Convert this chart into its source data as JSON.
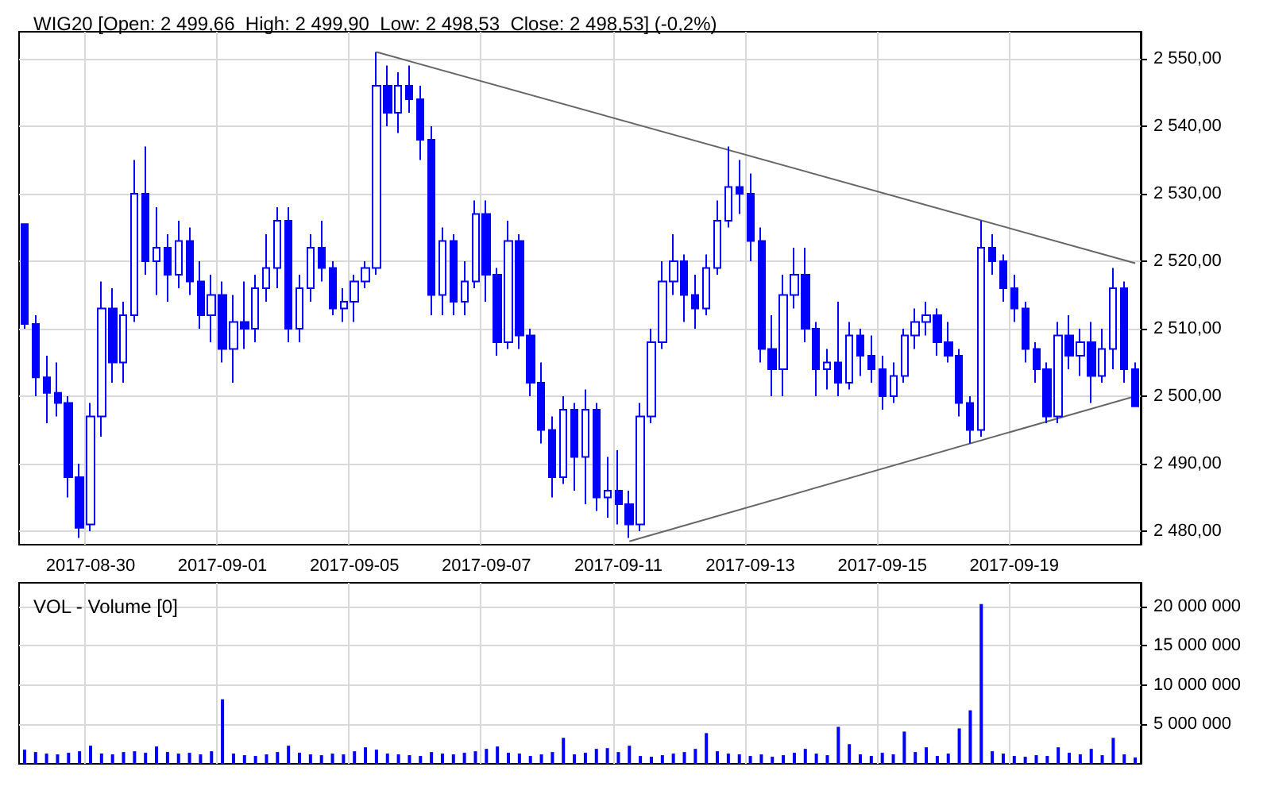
{
  "chart_data": [
    {
      "type": "candlestick",
      "title": "WIG20 [Open: 2 499,66  High: 2 499,90  Low: 2 498,53  Close: 2 498,53] (-0,2%)",
      "categories": [
        null,
        null,
        null,
        null,
        null,
        null,
        "2017-08-30",
        null,
        null,
        null,
        null,
        null,
        null,
        null,
        null,
        null,
        null,
        null,
        "2017-09-01",
        null,
        null,
        null,
        null,
        null,
        null,
        null,
        null,
        null,
        null,
        null,
        "2017-09-05",
        null,
        null,
        null,
        null,
        null,
        null,
        null,
        null,
        null,
        null,
        null,
        "2017-09-07",
        null,
        null,
        null,
        null,
        null,
        null,
        null,
        null,
        null,
        null,
        null,
        "2017-09-11",
        null,
        null,
        null,
        null,
        null,
        null,
        null,
        null,
        null,
        null,
        null,
        "2017-09-13",
        null,
        null,
        null,
        null,
        null,
        null,
        null,
        null,
        null,
        null,
        null,
        "2017-09-15",
        null,
        null,
        null,
        null,
        null,
        null,
        null,
        null,
        null,
        null,
        null,
        "2017-09-19",
        null,
        null,
        null,
        null,
        null,
        null,
        null,
        null,
        null,
        null,
        null
      ],
      "ohlc": [
        [
          2525.5,
          2525.5,
          2510,
          2510.7
        ],
        [
          2510.7,
          2512,
          2500,
          2502.8
        ],
        [
          2502.8,
          2506,
          2496,
          2500.5
        ],
        [
          2500.5,
          2505,
          2497,
          2499
        ],
        [
          2499,
          2500,
          2485,
          2488
        ],
        [
          2488,
          2490,
          2479,
          2480.5
        ],
        [
          2481,
          2499,
          2480,
          2497
        ],
        [
          2497,
          2517,
          2494,
          2513
        ],
        [
          2513,
          2516,
          2502,
          2505
        ],
        [
          2505,
          2514,
          2502,
          2512
        ],
        [
          2512,
          2535,
          2511,
          2530
        ],
        [
          2530,
          2537,
          2518,
          2520
        ],
        [
          2520,
          2528,
          2515,
          2522
        ],
        [
          2522,
          2524,
          2514,
          2518
        ],
        [
          2518,
          2526,
          2516,
          2523
        ],
        [
          2523,
          2525,
          2515,
          2517
        ],
        [
          2517,
          2520,
          2510,
          2512
        ],
        [
          2512,
          2518,
          2508,
          2515
        ],
        [
          2515,
          2517,
          2505,
          2507
        ],
        [
          2507,
          2515,
          2502,
          2511
        ],
        [
          2511,
          2517,
          2507,
          2510
        ],
        [
          2510,
          2518,
          2508,
          2516
        ],
        [
          2516,
          2524,
          2514,
          2519
        ],
        [
          2519,
          2528,
          2516,
          2526
        ],
        [
          2526,
          2528,
          2508,
          2510
        ],
        [
          2510,
          2518,
          2508,
          2516
        ],
        [
          2516,
          2524,
          2514,
          2522
        ],
        [
          2522,
          2526,
          2517,
          2519
        ],
        [
          2519,
          2520,
          2512,
          2513
        ],
        [
          2513,
          2516,
          2511,
          2514
        ],
        [
          2514,
          2518,
          2511,
          2517
        ],
        [
          2517,
          2520,
          2516,
          2519
        ],
        [
          2519,
          2551,
          2518,
          2546
        ],
        [
          2546,
          2549,
          2540,
          2542
        ],
        [
          2542,
          2548,
          2539,
          2546
        ],
        [
          2546,
          2549,
          2542,
          2544
        ],
        [
          2544,
          2546,
          2535,
          2538
        ],
        [
          2538,
          2540,
          2512,
          2515
        ],
        [
          2515,
          2525,
          2512,
          2523
        ],
        [
          2523,
          2524,
          2512,
          2514
        ],
        [
          2514,
          2520,
          2512,
          2517
        ],
        [
          2517,
          2529,
          2516,
          2527
        ],
        [
          2527,
          2529,
          2514,
          2518
        ],
        [
          2518,
          2519,
          2506,
          2508
        ],
        [
          2508,
          2526,
          2507,
          2523
        ],
        [
          2523,
          2524,
          2507,
          2509
        ],
        [
          2509,
          2510,
          2500,
          2502
        ],
        [
          2502,
          2505,
          2493,
          2495
        ],
        [
          2495,
          2497,
          2485,
          2488
        ],
        [
          2488,
          2500,
          2487,
          2498
        ],
        [
          2498,
          2499,
          2486,
          2491
        ],
        [
          2491,
          2501,
          2484,
          2498
        ],
        [
          2498,
          2499,
          2483,
          2485
        ],
        [
          2485,
          2491,
          2482,
          2486
        ],
        [
          2486,
          2492,
          2481,
          2484
        ],
        [
          2484,
          2486,
          2479,
          2481
        ],
        [
          2481,
          2499,
          2480,
          2497
        ],
        [
          2497,
          2510,
          2496,
          2508
        ],
        [
          2508,
          2520,
          2507,
          2517
        ],
        [
          2517,
          2524,
          2515,
          2520
        ],
        [
          2520,
          2521,
          2511,
          2515
        ],
        [
          2515,
          2518,
          2510,
          2513
        ],
        [
          2513,
          2521,
          2512,
          2519
        ],
        [
          2519,
          2529,
          2518,
          2526
        ],
        [
          2526,
          2537,
          2525,
          2531
        ],
        [
          2531,
          2535,
          2527,
          2530
        ],
        [
          2530,
          2533,
          2520,
          2523
        ],
        [
          2523,
          2525,
          2505,
          2507
        ],
        [
          2507,
          2512,
          2500,
          2504
        ],
        [
          2504,
          2518,
          2500,
          2515
        ],
        [
          2515,
          2522,
          2513,
          2518
        ],
        [
          2518,
          2522,
          2508,
          2510
        ],
        [
          2510,
          2511,
          2500,
          2504
        ],
        [
          2504,
          2507,
          2501,
          2505
        ],
        [
          2505,
          2514,
          2500,
          2502
        ],
        [
          2502,
          2511,
          2501,
          2509
        ],
        [
          2509,
          2510,
          2503,
          2506
        ],
        [
          2506,
          2509,
          2502,
          2504
        ],
        [
          2504,
          2506,
          2498,
          2500
        ],
        [
          2500,
          2505,
          2499,
          2503
        ],
        [
          2503,
          2510,
          2502,
          2509
        ],
        [
          2509,
          2513,
          2507,
          2511
        ],
        [
          2511,
          2514,
          2509,
          2512
        ],
        [
          2512,
          2513,
          2506,
          2508
        ],
        [
          2508,
          2511,
          2505,
          2506
        ],
        [
          2506,
          2507,
          2497,
          2499
        ],
        [
          2499,
          2500,
          2493,
          2495
        ],
        [
          2495,
          2526,
          2494,
          2522
        ],
        [
          2522,
          2524,
          2518,
          2520
        ],
        [
          2520,
          2521,
          2514,
          2516
        ],
        [
          2516,
          2518,
          2511,
          2513
        ],
        [
          2513,
          2514,
          2505,
          2507
        ],
        [
          2507,
          2508,
          2502,
          2504
        ],
        [
          2504,
          2505,
          2496,
          2497
        ],
        [
          2497,
          2511,
          2496,
          2509
        ],
        [
          2509,
          2512,
          2504,
          2506
        ],
        [
          2506,
          2510,
          2503,
          2508
        ],
        [
          2508,
          2511,
          2499,
          2503
        ],
        [
          2503,
          2510,
          2502,
          2507
        ],
        [
          2507,
          2519,
          2504,
          2516
        ],
        [
          2516,
          2517,
          2502,
          2504
        ],
        [
          2504,
          2505,
          2498.5,
          2498.5
        ]
      ],
      "color": "#0000ff",
      "series": [
        {
          "type": "line",
          "color": "#666666",
          "values": [
            null,
            null,
            null,
            null,
            null,
            null,
            null,
            null,
            null,
            null,
            null,
            null,
            null,
            null,
            null,
            null,
            null,
            null,
            null,
            null,
            null,
            null,
            null,
            null,
            null,
            null,
            null,
            null,
            null,
            null,
            null,
            null,
            2551,
            null,
            null,
            null,
            null,
            null,
            null,
            null,
            null,
            null,
            null,
            null,
            null,
            null,
            null,
            null,
            null,
            null,
            null,
            null,
            null,
            null,
            null,
            null,
            null,
            null,
            null,
            null,
            null,
            null,
            null,
            null,
            null,
            null,
            null,
            null,
            null,
            null,
            null,
            null,
            null,
            null,
            null,
            null,
            null,
            null,
            null,
            null,
            null,
            null,
            null,
            null,
            null,
            null,
            null,
            null,
            null,
            null,
            null,
            null,
            null,
            null,
            null,
            null,
            null,
            null,
            null,
            null,
            null,
            2519.7
          ]
        },
        {
          "type": "line",
          "color": "#666666",
          "values": [
            null,
            null,
            null,
            null,
            null,
            null,
            null,
            null,
            null,
            null,
            null,
            null,
            null,
            null,
            null,
            null,
            null,
            null,
            null,
            null,
            null,
            null,
            null,
            null,
            null,
            null,
            null,
            null,
            null,
            null,
            null,
            null,
            null,
            null,
            null,
            null,
            null,
            null,
            null,
            null,
            null,
            null,
            null,
            null,
            null,
            null,
            null,
            null,
            null,
            null,
            null,
            null,
            null,
            null,
            null,
            2478.5,
            null,
            null,
            null,
            null,
            null,
            null,
            null,
            null,
            null,
            null,
            null,
            null,
            null,
            null,
            null,
            null,
            null,
            null,
            null,
            null,
            null,
            null,
            null,
            null,
            null,
            null,
            null,
            null,
            null,
            null,
            null,
            null,
            null,
            null,
            null,
            null,
            null,
            null,
            null,
            null,
            null,
            null,
            null,
            null,
            null,
            2500
          ]
        }
      ],
      "ylim": [
        2478,
        2554
      ],
      "yticks": [
        {
          "value": 2480,
          "label": "2 480,00"
        },
        {
          "value": 2490,
          "label": "2 490,00"
        },
        {
          "value": 2500,
          "label": "2 500,00"
        },
        {
          "value": 2510,
          "label": "2 510,00"
        },
        {
          "value": 2520,
          "label": "2 520,00"
        },
        {
          "value": 2530,
          "label": "2 530,00"
        },
        {
          "value": 2540,
          "label": "2 540,00"
        },
        {
          "value": 2550,
          "label": "2 550,00"
        }
      ],
      "grid": true
    },
    {
      "type": "bar",
      "title": "VOL - Volume [0]",
      "categories": [
        null,
        null,
        null,
        null,
        null,
        null,
        "2017-08-30",
        null,
        null,
        null,
        null,
        null,
        null,
        null,
        null,
        null,
        null,
        null,
        "2017-09-01",
        null,
        null,
        null,
        null,
        null,
        null,
        null,
        null,
        null,
        null,
        null,
        "2017-09-05",
        null,
        null,
        null,
        null,
        null,
        null,
        null,
        null,
        null,
        null,
        null,
        "2017-09-07",
        null,
        null,
        null,
        null,
        null,
        null,
        null,
        null,
        null,
        null,
        null,
        "2017-09-11",
        null,
        null,
        null,
        null,
        null,
        null,
        null,
        null,
        null,
        null,
        null,
        "2017-09-13",
        null,
        null,
        null,
        null,
        null,
        null,
        null,
        null,
        null,
        null,
        null,
        "2017-09-15",
        null,
        null,
        null,
        null,
        null,
        null,
        null,
        null,
        null,
        null,
        null,
        "2017-09-19",
        null,
        null,
        null,
        null,
        null,
        null,
        null,
        null,
        null,
        null,
        null
      ],
      "values": [
        1800000,
        1500000,
        1300000,
        1200000,
        1400000,
        1600000,
        2300000,
        1300000,
        1200000,
        1500000,
        1600000,
        1400000,
        2200000,
        1500000,
        1300000,
        1400000,
        1200000,
        1600000,
        8200000,
        1300000,
        1100000,
        1000000,
        1200000,
        1500000,
        2300000,
        1400000,
        1200000,
        1100000,
        1300000,
        1200000,
        1600000,
        2100000,
        1800000,
        1300000,
        1200000,
        1100000,
        1000000,
        1500000,
        1300000,
        1200000,
        1400000,
        1600000,
        1900000,
        2200000,
        1400000,
        1300000,
        1000000,
        1200000,
        1500000,
        3300000,
        1200000,
        1400000,
        1900000,
        2000000,
        1500000,
        2300000,
        1000000,
        900000,
        1100000,
        1300000,
        1500000,
        1900000,
        3900000,
        1600000,
        1300000,
        1200000,
        1000000,
        1200000,
        900000,
        1100000,
        1400000,
        1900000,
        1300000,
        1100000,
        4700000,
        2500000,
        1200000,
        1000000,
        1400000,
        1200000,
        4100000,
        1500000,
        2100000,
        1000000,
        1300000,
        4500000,
        6800000,
        20300000,
        1600000,
        1300000,
        1000000,
        900000,
        1100000,
        1000000,
        2100000,
        1400000,
        1200000,
        1900000,
        1100000,
        3300000,
        1200000,
        800000
      ],
      "color": "#0000ff",
      "ylim": [
        0,
        23000000
      ],
      "yticks": [
        {
          "value": 5000000,
          "label": "5 000 000"
        },
        {
          "value": 10000000,
          "label": "10 000 000"
        },
        {
          "value": 15000000,
          "label": "15 000 000"
        },
        {
          "value": 20000000,
          "label": "20 000 000"
        }
      ],
      "grid": true,
      "tick_labels": "y"
    }
  ]
}
